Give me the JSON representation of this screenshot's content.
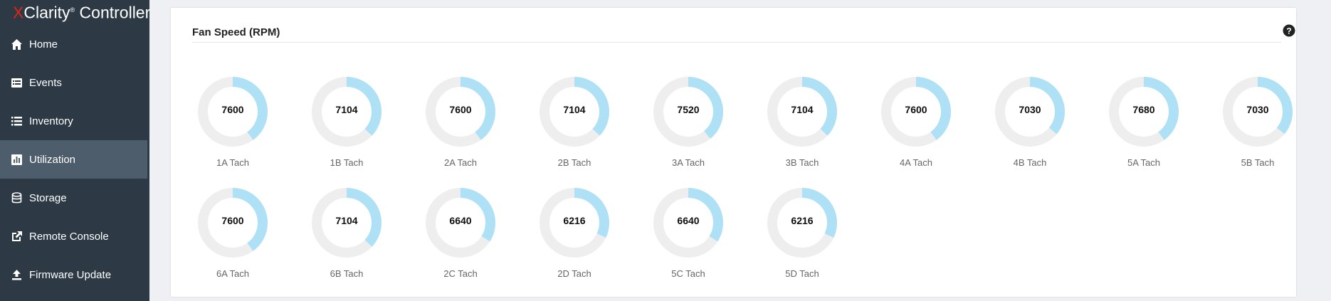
{
  "brand": {
    "x": "X",
    "rest": "Clarity",
    "tm": "®",
    "controller": " Controller"
  },
  "sidebar": {
    "items": [
      {
        "label": "Home",
        "icon": "home-icon",
        "active": false
      },
      {
        "label": "Events",
        "icon": "events-icon",
        "active": false
      },
      {
        "label": "Inventory",
        "icon": "list-icon",
        "active": false
      },
      {
        "label": "Utilization",
        "icon": "bar-chart-icon",
        "active": true
      },
      {
        "label": "Storage",
        "icon": "storage-icon",
        "active": false
      },
      {
        "label": "Remote Console",
        "icon": "external-link-icon",
        "active": false
      },
      {
        "label": "Firmware Update",
        "icon": "upload-icon",
        "active": false
      }
    ]
  },
  "panel": {
    "title": "Fan Speed (RPM)",
    "help_icon": "question-circle-icon"
  },
  "colors": {
    "gauge_fill": "#aee1f6",
    "gauge_track": "#eeeeee",
    "sidebar_bg": "#2d3a46",
    "sidebar_active": "#4e5d6c"
  },
  "fans": [
    {
      "label": "1A Tach",
      "value": "7600",
      "fraction": 0.4
    },
    {
      "label": "1B Tach",
      "value": "7104",
      "fraction": 0.37
    },
    {
      "label": "2A Tach",
      "value": "7600",
      "fraction": 0.4
    },
    {
      "label": "2B Tach",
      "value": "7104",
      "fraction": 0.37
    },
    {
      "label": "3A Tach",
      "value": "7520",
      "fraction": 0.39
    },
    {
      "label": "3B Tach",
      "value": "7104",
      "fraction": 0.37
    },
    {
      "label": "4A Tach",
      "value": "7600",
      "fraction": 0.4
    },
    {
      "label": "4B Tach",
      "value": "7030",
      "fraction": 0.36
    },
    {
      "label": "5A Tach",
      "value": "7680",
      "fraction": 0.4
    },
    {
      "label": "5B Tach",
      "value": "7030",
      "fraction": 0.36
    },
    {
      "label": "6A Tach",
      "value": "7600",
      "fraction": 0.4
    },
    {
      "label": "6B Tach",
      "value": "7104",
      "fraction": 0.37
    },
    {
      "label": "2C Tach",
      "value": "6640",
      "fraction": 0.34
    },
    {
      "label": "2D Tach",
      "value": "6216",
      "fraction": 0.32
    },
    {
      "label": "5C Tach",
      "value": "6640",
      "fraction": 0.34
    },
    {
      "label": "5D Tach",
      "value": "6216",
      "fraction": 0.32
    }
  ]
}
